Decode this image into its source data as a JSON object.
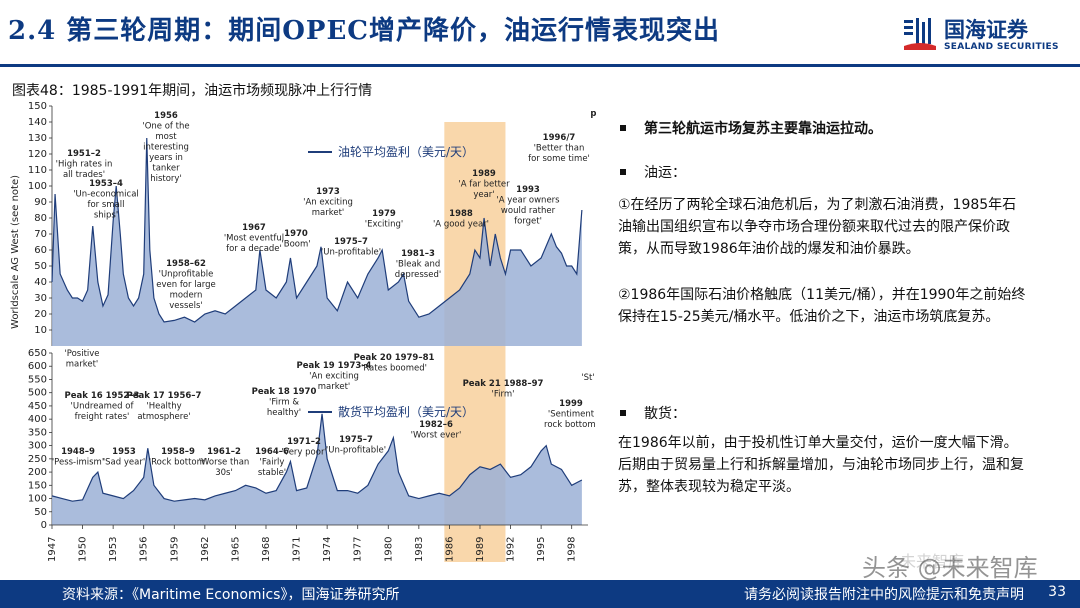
{
  "header": {
    "title": "2.4 第三轮周期：期间OPEC增产降价，油运行情表现突出",
    "logo_cn": "国海证券",
    "logo_en": "SEALAND SECURITIES",
    "brand_color": "#0d3a82"
  },
  "figure_caption": "图表48：1985-1991年期间，油运市场频现脉冲上行行情",
  "bullets": {
    "b1": "第三轮航运市场复苏主要靠油运拉动。",
    "b2": "油运：",
    "p1": "①在经历了两轮全球石油危机后，为了刺激石油消费，1985年石油输出国组织宣布以争夺市场合理份额来取代过去的限产保价政策，从而导致1986年油价战的爆发和油价暴跌。",
    "p2": "②1986年国际石油价格触底（11美元/桶），并在1990年之前始终保持在15-25美元/桶水平。低油价之下，油运市场筑底复苏。",
    "b3": "散货：",
    "p3": "在1986年以前，由于投机性订单大量交付，运价一度大幅下滑。后期由于贸易量上行和拆解量增加，与油轮市场同步上行，温和复苏，整体表现较为稳定平淡。"
  },
  "footer": {
    "source": "资料来源：《Maritime Economics》，国海证券研究所",
    "disclaimer": "请务必阅读报告附注中的风险提示和免责声明",
    "page": "33"
  },
  "watermark": {
    "text": "头条 @未来智库",
    "top_text": "未来智库"
  },
  "chart_data": [
    {
      "type": "area",
      "ylabel": "Worldscale AG West (see note)",
      "ylim": [
        0,
        150
      ],
      "yticks": [
        10,
        20,
        30,
        40,
        50,
        60,
        70,
        80,
        90,
        100,
        110,
        120,
        130,
        140,
        150
      ],
      "legend": "油轮平均盈利（美元/天）",
      "highlight_range": [
        1985.5,
        1991.5
      ],
      "color": "#9bb0d6",
      "line_color": "#1f3d7a",
      "x": [
        1947,
        1947.3,
        1947.8,
        1948.5,
        1949,
        1949.5,
        1950,
        1950.5,
        1951,
        1951.5,
        1952,
        1952.5,
        1953,
        1953.3,
        1953.7,
        1954,
        1954.5,
        1955,
        1955.5,
        1956,
        1956.3,
        1956.6,
        1957,
        1957.5,
        1958,
        1959,
        1960,
        1961,
        1962,
        1963,
        1964,
        1965,
        1966,
        1967,
        1967.4,
        1968,
        1969,
        1970,
        1970.4,
        1971,
        1972,
        1973,
        1973.4,
        1974,
        1975,
        1976,
        1977,
        1978,
        1979,
        1979.4,
        1980,
        1981,
        1981.5,
        1982,
        1983,
        1984,
        1985,
        1986,
        1987,
        1988,
        1988.5,
        1989,
        1989.4,
        1990,
        1990.5,
        1991,
        1991.5,
        1992,
        1993,
        1994,
        1995,
        1996,
        1996.5,
        1997,
        1997.5,
        1998,
        1998.5,
        1999
      ],
      "values": [
        40,
        95,
        45,
        35,
        30,
        30,
        28,
        35,
        75,
        40,
        25,
        32,
        78,
        100,
        70,
        45,
        30,
        25,
        30,
        45,
        130,
        60,
        30,
        20,
        15,
        16,
        18,
        15,
        20,
        22,
        20,
        25,
        30,
        35,
        60,
        35,
        30,
        40,
        55,
        30,
        40,
        50,
        62,
        30,
        22,
        40,
        30,
        45,
        55,
        60,
        35,
        40,
        45,
        28,
        18,
        20,
        25,
        30,
        35,
        45,
        60,
        55,
        80,
        50,
        70,
        55,
        45,
        60,
        60,
        50,
        55,
        70,
        62,
        58,
        50,
        50,
        45,
        85
      ],
      "annotations": [
        "1951–2 'High rates in all trades'",
        "1953–4 'Un-economical for small ships'",
        "1956 'One of the most interesting years in tanker history'",
        "1958–62 'Unprofitable even for large modern vessels'",
        "1967 'Most eventful for a decade'",
        "1970 'Boom'",
        "1973 'An exciting market'",
        "1975–7 'Un-profitable'",
        "1979 'Exciting'",
        "1981–3 'Bleak and depressed'",
        "1988 'A good year'",
        "1989 'A far better year'",
        "1993 'A year owners would rather forget'",
        "1996/7 'Better than for some time'",
        "prosp"
      ]
    },
    {
      "type": "area",
      "ylim": [
        0,
        650
      ],
      "yticks": [
        0,
        50,
        100,
        150,
        200,
        250,
        300,
        350,
        400,
        450,
        500,
        550,
        600,
        650
      ],
      "legend": "散货平均盈利（美元/天）",
      "highlight_range": [
        1985.5,
        1991.5
      ],
      "color": "#9bb0d6",
      "line_color": "#1f3d7a",
      "x": [
        1947,
        1948,
        1949,
        1950,
        1951,
        1951.5,
        1952,
        1953,
        1954,
        1955,
        1956,
        1956.4,
        1957,
        1958,
        1959,
        1960,
        1961,
        1962,
        1963,
        1964,
        1965,
        1966,
        1967,
        1968,
        1969,
        1970,
        1970.4,
        1971,
        1972,
        1973,
        1973.5,
        1974,
        1975,
        1976,
        1977,
        1978,
        1979,
        1980,
        1980.5,
        1981,
        1982,
        1983,
        1984,
        1985,
        1986,
        1987,
        1988,
        1989,
        1990,
        1991,
        1992,
        1993,
        1994,
        1995,
        1995.5,
        1996,
        1997,
        1998,
        1999
      ],
      "values": [
        110,
        100,
        90,
        95,
        180,
        200,
        120,
        110,
        100,
        130,
        180,
        290,
        150,
        100,
        90,
        95,
        100,
        95,
        110,
        120,
        130,
        150,
        140,
        120,
        130,
        200,
        240,
        130,
        140,
        260,
        420,
        250,
        130,
        130,
        120,
        150,
        230,
        280,
        330,
        200,
        110,
        100,
        110,
        120,
        110,
        140,
        190,
        220,
        210,
        230,
        180,
        190,
        220,
        280,
        300,
        230,
        210,
        150,
        170
      ],
      "xticks": [
        "1947",
        "1950",
        "1953",
        "1956",
        "1959",
        "1962",
        "1965",
        "1968",
        "1971",
        "1974",
        "1977",
        "1980",
        "1983",
        "1986",
        "1989",
        "1992",
        "1995",
        "1998"
      ],
      "annotations": [
        "'Positive market'",
        "Peak 16 1952–3 'Undreamed of freight rates'",
        "Peak 17 1956–7 'Healthy atmosphere'",
        "1948–9 'Pess-imism'",
        "1953 'Sad year'",
        "1958–9 'Rock bottom'",
        "1961–2 'Worse than 30s'",
        "1964–6 'Fairly stable'",
        "Peak 18 1970 'Firm & healthy'",
        "1971–2 'Very poor'",
        "Peak 19 1973–4 'An exciting market'",
        "1975–7 'Un-profitable'",
        "Peak 20 1979–81 'Rates boomed'",
        "1982–6 'Worst ever'",
        "Peak 21 1988–97 'Firm'",
        "1999 'Sentiment rock bottom'",
        "'St"
      ]
    }
  ]
}
